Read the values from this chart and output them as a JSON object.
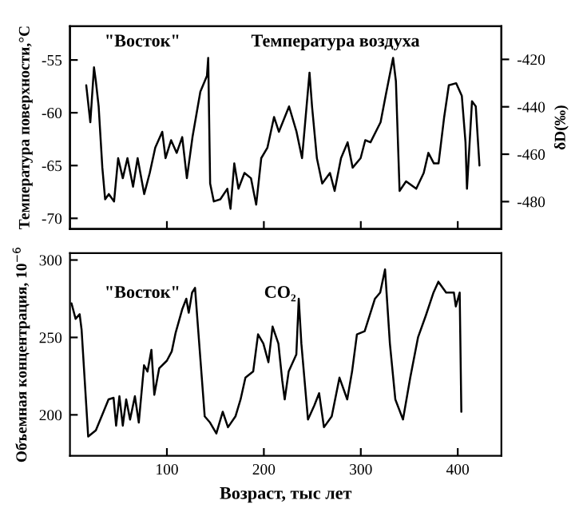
{
  "chart_data": [
    {
      "type": "line",
      "ylabel": "Температура поверхности,°C",
      "y2label": "δD(‰)",
      "annotations": [
        "\"Восток\""
      ],
      "tick_labels": "y",
      "xlim": [
        0,
        445
      ],
      "xticks": [
        100,
        200,
        300,
        400
      ],
      "ylim": [
        -71,
        -51.8
      ],
      "yticks": [
        -70,
        -65,
        -60,
        -55
      ],
      "y2lim": [
        -491.5,
        -406
      ],
      "y2ticks": [
        -480,
        -460,
        -440,
        -420
      ],
      "legend": false,
      "grid": false,
      "series": [
        {
          "name": "Температура воздуха",
          "color": "#000000",
          "x": [
            16.8,
            21,
            24.8,
            26.7,
            29.6,
            33.4,
            36.3,
            40.1,
            45.5,
            49.7,
            54.5,
            59.3,
            65.1,
            69.8,
            76.6,
            82.3,
            88,
            95.2,
            98.6,
            104.3,
            110.1,
            115.8,
            120.6,
            126.4,
            134.5,
            141.3,
            142.6,
            144.6,
            148.4,
            155.1,
            162.3,
            165.6,
            169.5,
            173.8,
            180,
            186.7,
            192.1,
            197.3,
            203.7,
            210.5,
            215.5,
            226,
            233.7,
            239.4,
            247.1,
            249.7,
            254.7,
            260.2,
            268.2,
            273,
            279.6,
            286.4,
            291.6,
            299.8,
            304.6,
            310,
            320.4,
            325.6,
            333.3,
            336.2,
            340,
            346.7,
            357.2,
            364.9,
            369.7,
            375.4,
            380.2,
            386,
            390.8,
            398.4,
            404.2,
            408,
            409.5,
            414.7,
            418.6,
            422.4
          ],
          "values": [
            -57.4,
            -60.9,
            -55.7,
            -57,
            -59.4,
            -65.2,
            -68.2,
            -67.7,
            -68.4,
            -64.3,
            -66.2,
            -64.3,
            -67,
            -64.3,
            -67.7,
            -65.7,
            -63.3,
            -61.8,
            -64.3,
            -62.6,
            -63.8,
            -62.3,
            -66.2,
            -62.3,
            -58,
            -56.5,
            -54.8,
            -66.7,
            -68.4,
            -68.2,
            -67.2,
            -69.1,
            -64.8,
            -67.2,
            -65.7,
            -66.2,
            -68.7,
            -64.3,
            -63.3,
            -60.4,
            -61.8,
            -59.4,
            -61.8,
            -64.3,
            -56.2,
            -59.4,
            -64.3,
            -66.7,
            -65.7,
            -67.4,
            -64.3,
            -62.8,
            -65.2,
            -64.3,
            -62.6,
            -62.8,
            -60.9,
            -58.4,
            -54.8,
            -57,
            -67.4,
            -66.5,
            -67.2,
            -65.7,
            -63.8,
            -64.8,
            -64.8,
            -60.4,
            -57.4,
            -57.2,
            -58.4,
            -62.8,
            -67.2,
            -58.9,
            -59.4,
            -65
          ]
        }
      ]
    },
    {
      "type": "line",
      "ylabel": "Объемная концентрация, 10$^{−6}$",
      "xlabel": "Возраст, тыс лет",
      "annotations": [
        "\"Восток\""
      ],
      "xlim": [
        0,
        445
      ],
      "xticks": [
        100,
        200,
        300,
        400
      ],
      "ylim": [
        173.5,
        304.4
      ],
      "yticks": [
        200,
        250,
        300
      ],
      "legend": false,
      "grid": false,
      "series": [
        {
          "name": "CO₂",
          "color": "#000000",
          "x": [
            1.6,
            5.8,
            10,
            12,
            18.8,
            26.7,
            34.6,
            39.8,
            45,
            47.6,
            51,
            54.5,
            58,
            62,
            67,
            71,
            76.4,
            80,
            84,
            87,
            92,
            100,
            105,
            109,
            115.7,
            120,
            122.5,
            126,
            129,
            139,
            144.5,
            151,
            157.6,
            163,
            170.7,
            176,
            181,
            189,
            194,
            199.5,
            204.7,
            209,
            215,
            219,
            221.5,
            225.6,
            233.5,
            236,
            238.7,
            245.5,
            252,
            257,
            262,
            270,
            278,
            286,
            291,
            296,
            304,
            309,
            314.6,
            320,
            325,
            330,
            335.6,
            343.5,
            351,
            359,
            367,
            375,
            380,
            388,
            396,
            398,
            402,
            403.7
          ],
          "values": [
            272,
            262,
            265,
            255,
            186,
            190,
            202,
            210,
            211,
            193,
            212,
            193,
            210,
            197,
            212,
            195,
            232,
            228,
            242,
            213,
            230,
            235,
            241,
            253,
            268,
            275,
            266,
            279,
            282,
            199,
            195,
            188,
            202,
            192,
            199,
            210,
            224,
            228,
            252,
            246,
            234,
            257,
            246,
            222,
            210,
            228,
            239,
            275,
            246,
            197,
            206,
            214,
            192,
            199,
            224,
            210,
            228,
            252,
            254,
            264,
            275,
            279,
            294,
            246,
            210,
            197,
            224,
            250,
            264,
            279,
            286,
            279,
            279,
            270,
            279,
            202
          ]
        }
      ]
    }
  ]
}
